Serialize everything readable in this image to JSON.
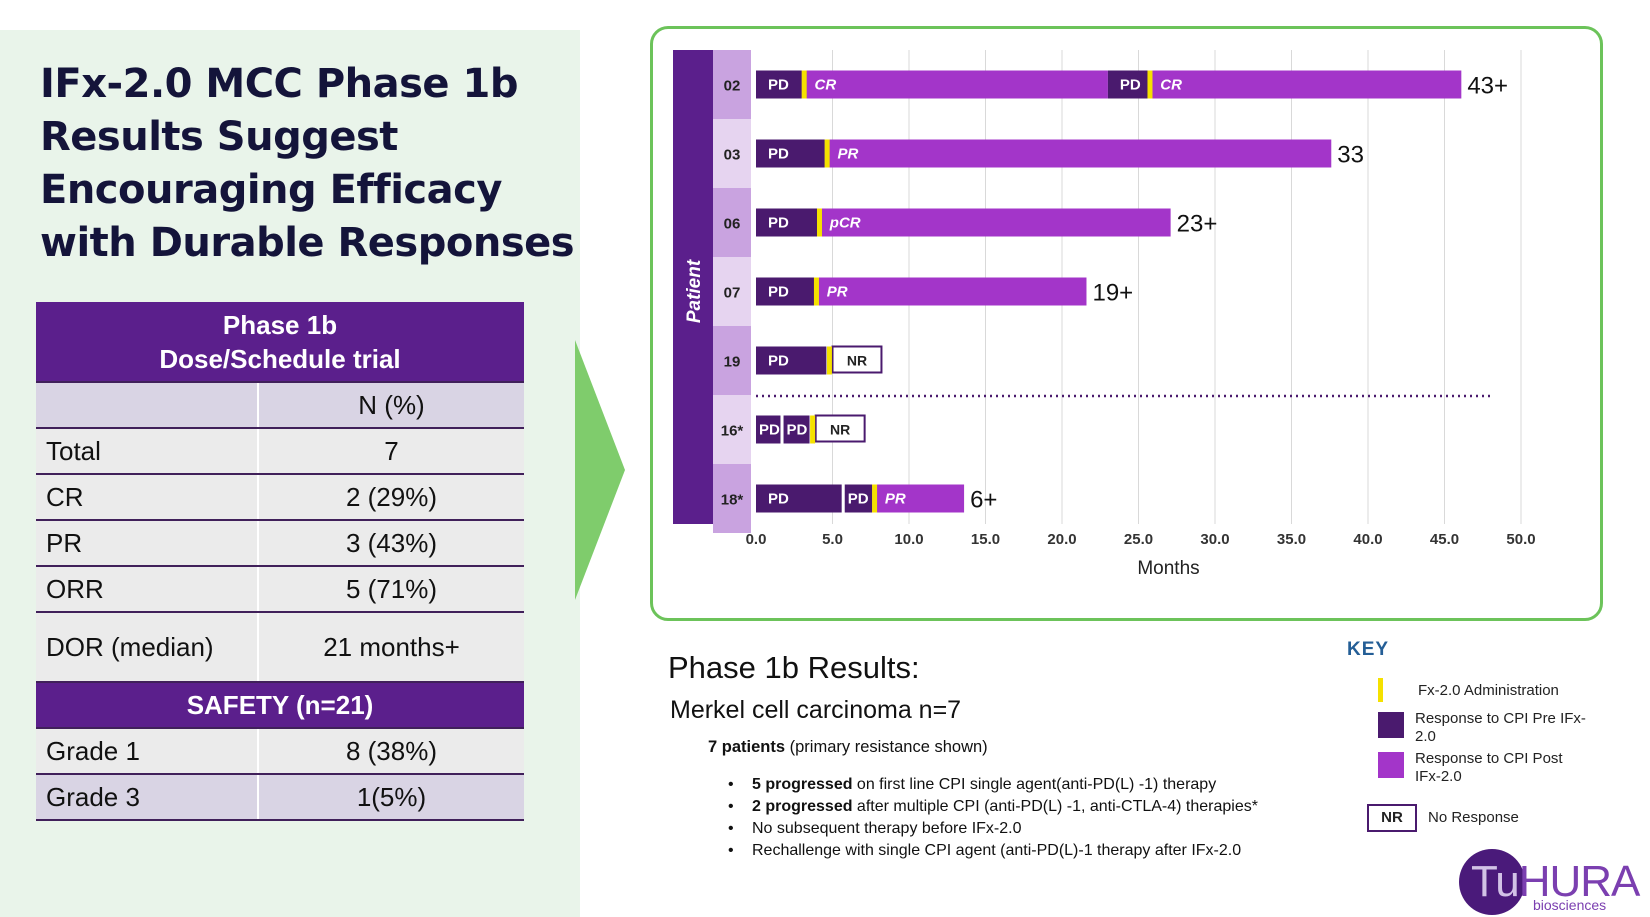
{
  "title": "IFx-2.0 MCC Phase 1b Results Suggest Encouraging Efficacy with Durable Responses",
  "table": {
    "header_line1": "Phase 1b",
    "header_line2": "Dose/Schedule trial",
    "col_header": "N (%)",
    "rows": [
      {
        "label": "Total",
        "value": "7"
      },
      {
        "label": "CR",
        "value": "2 (29%)"
      },
      {
        "label": "PR",
        "value": "3 (43%)"
      },
      {
        "label": "ORR",
        "value": "5 (71%)"
      },
      {
        "label": "DOR (median)",
        "value": "21 months+"
      }
    ],
    "safety_header": "SAFETY (n=21)",
    "safety_rows": [
      {
        "label": "Grade 1",
        "value": "8 (38%)"
      },
      {
        "label": "Grade 3",
        "value": "1(5%)"
      }
    ]
  },
  "chart_data": {
    "type": "bar",
    "orientation": "horizontal",
    "ylabel": "Patient",
    "xlabel": "Months",
    "xlim": [
      0,
      50
    ],
    "x_ticks": [
      "0.0",
      "5.0",
      "10.0",
      "15.0",
      "20.0",
      "25.0",
      "30.0",
      "35.0",
      "40.0",
      "45.0",
      "50.0"
    ],
    "grid": "vertical",
    "patients": [
      {
        "id": "02",
        "end_label": "43+",
        "segments": [
          {
            "label": "PD",
            "kind": "pre",
            "start": 0,
            "end": 3.0
          },
          {
            "label": "CR",
            "kind": "post",
            "start": 3.3,
            "end": 23.0
          },
          {
            "label": "PD",
            "kind": "pre",
            "start": 23.0,
            "end": 25.6
          },
          {
            "label": "CR",
            "kind": "post",
            "start": 25.9,
            "end": 46.1
          }
        ],
        "admins": [
          3.15,
          25.75
        ]
      },
      {
        "id": "03",
        "end_label": "33",
        "segments": [
          {
            "label": "PD",
            "kind": "pre",
            "start": 0,
            "end": 4.5
          },
          {
            "label": "PR",
            "kind": "post",
            "start": 4.8,
            "end": 37.6
          }
        ],
        "admins": [
          4.65
        ]
      },
      {
        "id": "06",
        "end_label": "23+",
        "segments": [
          {
            "label": "PD",
            "kind": "pre",
            "start": 0,
            "end": 4.0
          },
          {
            "label": "pCR",
            "kind": "post",
            "start": 4.3,
            "end": 27.1
          }
        ],
        "admins": [
          4.15
        ]
      },
      {
        "id": "07",
        "end_label": "19+",
        "segments": [
          {
            "label": "PD",
            "kind": "pre",
            "start": 0,
            "end": 3.8
          },
          {
            "label": "PR",
            "kind": "post",
            "start": 4.1,
            "end": 21.6
          }
        ],
        "admins": [
          3.95
        ]
      },
      {
        "id": "19",
        "end_label": "",
        "segments": [
          {
            "label": "PD",
            "kind": "pre",
            "start": 0,
            "end": 4.6
          },
          {
            "label": "NR",
            "kind": "nr",
            "start": 5.0,
            "end": 8.2
          }
        ],
        "admins": [
          4.8
        ]
      },
      {
        "id": "16*",
        "end_label": "",
        "segments": [
          {
            "label": "PD",
            "kind": "pre",
            "start": 0,
            "end": 1.6
          },
          {
            "label": "PD",
            "kind": "pre",
            "start": 1.8,
            "end": 3.5
          },
          {
            "label": "NR",
            "kind": "nr",
            "start": 3.9,
            "end": 7.1
          }
        ],
        "admins": [
          3.7
        ]
      },
      {
        "id": "18*",
        "end_label": "6+",
        "segments": [
          {
            "label": "PD",
            "kind": "pre",
            "start": 0,
            "end": 5.6
          },
          {
            "label": "PD",
            "kind": "pre",
            "start": 5.8,
            "end": 7.6
          },
          {
            "label": "PR",
            "kind": "post",
            "start": 7.9,
            "end": 13.6
          }
        ],
        "admins": [
          7.75
        ]
      }
    ],
    "separator_after": "19",
    "colors": {
      "pre": "#4a1a6e",
      "post": "#a335c9",
      "admin": "#f5e100",
      "axis_band": "#5b1f8c",
      "id_band_a": "#c9a3e0",
      "id_band_b": "#e6d4f0",
      "nr_border": "#4a1a6e"
    }
  },
  "results": {
    "title": "Phase 1b Results:",
    "subtitle": "Merkel cell carcinoma n=7",
    "patients_bold": "7 patients",
    "patients_rest": " (primary resistance shown)",
    "bullets": [
      {
        "bold": "5 progressed",
        "text": " on first line CPI single agent(anti-PD(L) -1) therapy"
      },
      {
        "bold": "2 progressed",
        "text": " after multiple CPI (anti-PD(L) -1,  anti-CTLA-4) therapies*"
      },
      {
        "bold": "",
        "text": "No subsequent therapy before IFx-2.0"
      },
      {
        "bold": "",
        "text": "Rechallenge with single CPI agent (anti-PD(L)-1 therapy after IFx-2.0"
      }
    ]
  },
  "key": {
    "title": "KEY",
    "items": [
      {
        "kind": "admin",
        "label": "Fx-2.0 Administration"
      },
      {
        "kind": "pre",
        "label": "Response to CPI Pre IFx-2.0"
      },
      {
        "kind": "post",
        "label": "Response to CPI Post IFx-2.0"
      },
      {
        "kind": "nr",
        "swatch": "NR",
        "label": "No Response"
      }
    ]
  },
  "logo": {
    "tu": "Tu",
    "hura": "HURA",
    "sub": "biosciences"
  }
}
